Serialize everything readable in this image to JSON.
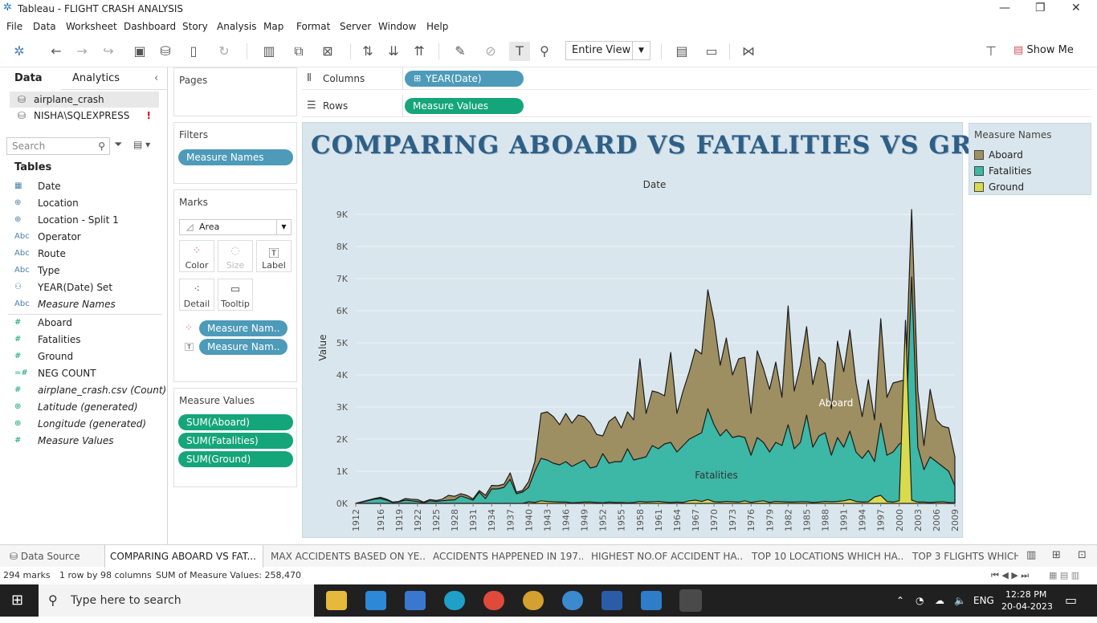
{
  "window": {
    "title": "Tableau - FLIGHT CRASH ANALYSIS"
  },
  "menu": [
    "File",
    "Data",
    "Worksheet",
    "Dashboard",
    "Story",
    "Analysis",
    "Map",
    "Format",
    "Server",
    "Window",
    "Help"
  ],
  "toolbar": {
    "view_select": "Entire View",
    "show_me": "Show Me"
  },
  "left_pane": {
    "tab_data": "Data",
    "tab_analytics": "Analytics",
    "data_source": "airplane_crash",
    "connection": "NISHA\\SQLEXPRESS",
    "connection_warning": "!",
    "search_placeholder": "Search",
    "tables_heading": "Tables",
    "dimensions": [
      {
        "icon": "calendar-icon",
        "glyph": "▦",
        "label": "Date"
      },
      {
        "icon": "globe-icon",
        "glyph": "⊕",
        "label": "Location"
      },
      {
        "icon": "globe-icon",
        "glyph": "⊕",
        "label": "Location - Split 1"
      },
      {
        "icon": "abc-icon",
        "glyph": "Abc",
        "label": "Operator"
      },
      {
        "icon": "abc-icon",
        "glyph": "Abc",
        "label": "Route"
      },
      {
        "icon": "abc-icon",
        "glyph": "Abc",
        "label": "Type"
      },
      {
        "icon": "set-icon",
        "glyph": "⚇",
        "label": "YEAR(Date) Set"
      },
      {
        "icon": "abc-icon",
        "glyph": "Abc",
        "label": "Measure Names"
      }
    ],
    "measures": [
      {
        "icon": "number-icon",
        "glyph": "#",
        "label": "Aboard"
      },
      {
        "icon": "number-icon",
        "glyph": "#",
        "label": "Fatalities"
      },
      {
        "icon": "number-icon",
        "glyph": "#",
        "label": "Ground"
      },
      {
        "icon": "number-icon",
        "glyph": "=#",
        "label": "NEG COUNT"
      },
      {
        "icon": "number-icon",
        "glyph": "#",
        "label": "airplane_crash.csv (Count)"
      },
      {
        "icon": "globe-icon",
        "glyph": "⊕",
        "label": "Latitude (generated)"
      },
      {
        "icon": "globe-icon",
        "glyph": "⊕",
        "label": "Longitude (generated)"
      },
      {
        "icon": "number-icon",
        "glyph": "#",
        "label": "Measure Values"
      }
    ]
  },
  "pages": {
    "heading": "Pages"
  },
  "filters": {
    "heading": "Filters",
    "pill": "Measure Names"
  },
  "marks": {
    "heading": "Marks",
    "type": "Area",
    "buttons": [
      "Color",
      "Size",
      "Label",
      "Detail",
      "Tooltip"
    ],
    "pills": [
      "Measure Nam..",
      "Measure Nam.."
    ]
  },
  "measure_values": {
    "heading": "Measure Values",
    "pills": [
      "SUM(Aboard)",
      "SUM(Fatalities)",
      "SUM(Ground)"
    ]
  },
  "shelves": {
    "columns_label": "Columns",
    "columns_pill": "YEAR(Date)",
    "rows_label": "Rows",
    "rows_pill": "Measure Values"
  },
  "legend": {
    "heading": "Measure Names",
    "items": [
      {
        "name": "Aboard",
        "color": "#9e8f62"
      },
      {
        "name": "Fatalities",
        "color": "#3db7a6"
      },
      {
        "name": "Ground",
        "color": "#dada4e"
      }
    ]
  },
  "sheet_tabs": {
    "data_source": "Data Source",
    "tabs": [
      "COMPARING ABOARD VS FAT...",
      "MAX ACCIDENTS BASED ON YE...",
      "ACCIDENTS HAPPENED IN 197...",
      "HIGHEST NO.OF ACCIDENT HA...",
      "TOP 10 LOCATIONS WHICH HA...",
      "TOP 3 FLIGHTS WHICH"
    ]
  },
  "status": {
    "marks": "294 marks",
    "dims": "1 row by 98 columns",
    "sum": "SUM of Measure Values: 258,470"
  },
  "taskbar": {
    "search": "Type here to search",
    "lang": "ENG",
    "time": "12:28 PM",
    "date": "20-04-2023"
  },
  "chart_data": {
    "type": "area",
    "title": "COMPARING ABOARD VS FATALITIES VS GROUND",
    "xlabel": "Date",
    "ylabel": "Value",
    "ylim": [
      0,
      9500
    ],
    "yticks": [
      "0K",
      "1K",
      "2K",
      "3K",
      "4K",
      "5K",
      "6K",
      "7K",
      "8K",
      "9K"
    ],
    "ytick_values": [
      0,
      1000,
      2000,
      3000,
      4000,
      5000,
      6000,
      7000,
      8000,
      9000
    ],
    "xticks": [
      1912,
      1916,
      1919,
      1922,
      1925,
      1928,
      1931,
      1934,
      1937,
      1940,
      1943,
      1946,
      1949,
      1952,
      1955,
      1958,
      1961,
      1964,
      1967,
      1970,
      1973,
      1976,
      1979,
      1982,
      1985,
      1988,
      1991,
      1994,
      1997,
      2000,
      2003,
      2006,
      2009
    ],
    "annotations": [
      "Aboard",
      "Fatalities"
    ],
    "x": [
      1912,
      1913,
      1915,
      1916,
      1917,
      1918,
      1919,
      1920,
      1921,
      1922,
      1923,
      1924,
      1925,
      1926,
      1927,
      1928,
      1929,
      1930,
      1931,
      1932,
      1933,
      1934,
      1935,
      1936,
      1937,
      1938,
      1939,
      1940,
      1941,
      1942,
      1943,
      1944,
      1945,
      1946,
      1947,
      1948,
      1949,
      1950,
      1951,
      1952,
      1953,
      1954,
      1955,
      1956,
      1957,
      1958,
      1959,
      1960,
      1961,
      1962,
      1963,
      1964,
      1965,
      1966,
      1967,
      1968,
      1969,
      1970,
      1971,
      1972,
      1973,
      1974,
      1975,
      1976,
      1977,
      1978,
      1979,
      1980,
      1981,
      1982,
      1983,
      1984,
      1985,
      1986,
      1987,
      1988,
      1989,
      1990,
      1991,
      1992,
      1993,
      1994,
      1995,
      1996,
      1997,
      1998,
      1999,
      2000,
      2001,
      2002,
      2003,
      2004,
      2005,
      2006,
      2007,
      2008,
      2009
    ],
    "series": [
      {
        "name": "Aboard",
        "values": [
          5,
          50,
          150,
          190,
          130,
          40,
          60,
          150,
          130,
          120,
          40,
          120,
          90,
          130,
          250,
          220,
          300,
          250,
          140,
          400,
          250,
          560,
          550,
          600,
          950,
          350,
          400,
          680,
          1300,
          2800,
          2850,
          2700,
          2450,
          2800,
          2500,
          2750,
          2700,
          2500,
          2150,
          2100,
          2550,
          2700,
          2350,
          2850,
          2600,
          4500,
          2800,
          3500,
          3450,
          3350,
          4700,
          2800,
          3500,
          4100,
          4800,
          4650,
          6650,
          5700,
          4300,
          5150,
          4000,
          4500,
          4550,
          2800,
          4750,
          4200,
          3550,
          4400,
          3300,
          6150,
          3500,
          4300,
          5500,
          3700,
          4550,
          4350,
          2950,
          5050,
          4100,
          5400,
          3750,
          2700,
          3850,
          2600,
          5750,
          3300,
          3750,
          3800,
          3850,
          9150,
          3500,
          1800,
          3550,
          2600,
          2400,
          2350,
          1450
        ]
      },
      {
        "name": "Fatalities",
        "values": [
          5,
          40,
          130,
          150,
          100,
          30,
          50,
          100,
          80,
          60,
          20,
          80,
          60,
          80,
          100,
          110,
          230,
          170,
          100,
          350,
          150,
          450,
          450,
          500,
          750,
          300,
          350,
          500,
          1000,
          1400,
          1350,
          1250,
          1200,
          1300,
          1150,
          1250,
          1350,
          1100,
          1150,
          1550,
          1250,
          1300,
          1300,
          1700,
          1350,
          1400,
          1450,
          1800,
          1700,
          1850,
          1900,
          1600,
          1800,
          2000,
          2100,
          2200,
          2950,
          2450,
          2100,
          2300,
          2050,
          2100,
          2050,
          1500,
          2050,
          1900,
          1600,
          1900,
          1800,
          2450,
          1700,
          1900,
          2750,
          1750,
          2100,
          2200,
          1500,
          2050,
          1750,
          2250,
          1600,
          1400,
          1650,
          1300,
          2500,
          1500,
          1600,
          1850,
          1950,
          7050,
          1750,
          1050,
          1450,
          1300,
          1150,
          1000,
          550
        ]
      },
      {
        "name": "Ground",
        "values": [
          0,
          0,
          0,
          0,
          0,
          0,
          0,
          0,
          0,
          0,
          0,
          0,
          0,
          0,
          0,
          0,
          0,
          0,
          0,
          0,
          0,
          0,
          0,
          0,
          0,
          0,
          0,
          50,
          30,
          80,
          60,
          50,
          40,
          40,
          20,
          30,
          40,
          40,
          30,
          20,
          40,
          30,
          30,
          20,
          30,
          60,
          40,
          50,
          60,
          40,
          30,
          40,
          30,
          80,
          100,
          60,
          120,
          50,
          40,
          60,
          50,
          40,
          80,
          30,
          60,
          80,
          30,
          60,
          50,
          40,
          40,
          50,
          50,
          30,
          40,
          60,
          50,
          60,
          80,
          120,
          60,
          40,
          50,
          200,
          250,
          60,
          40,
          80,
          5700,
          100,
          40,
          40,
          30,
          40,
          50,
          30,
          20
        ]
      }
    ]
  }
}
